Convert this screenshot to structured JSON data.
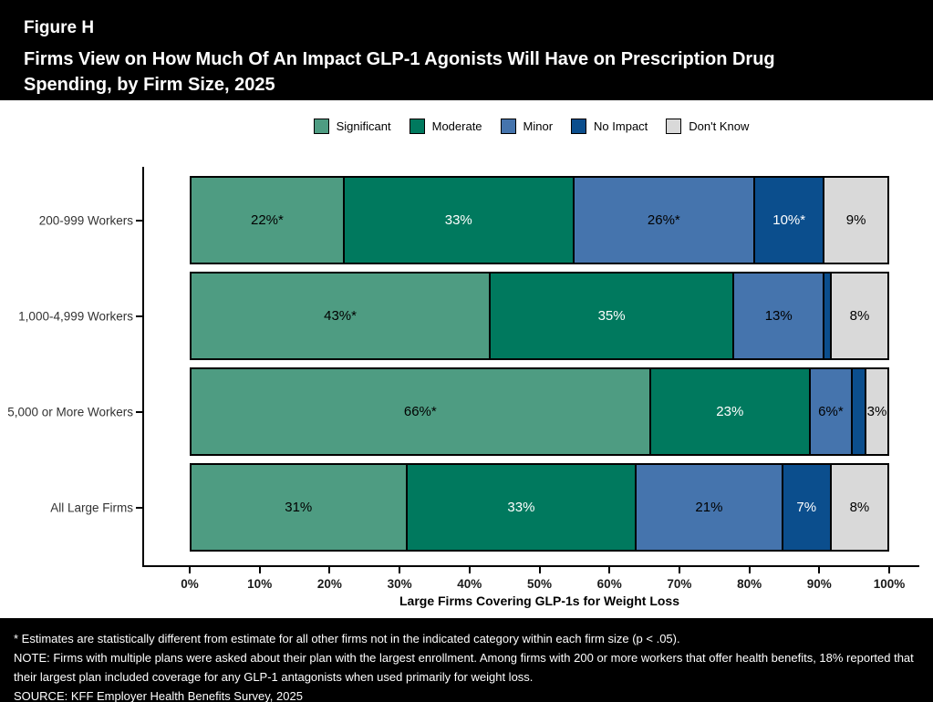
{
  "header": {
    "figure_label": "Figure H",
    "title_line1": "Firms View on How Much Of An Impact GLP-1 Agonists Will Have on Prescription Drug",
    "title_line2": "Spending, by Firm Size, 2025"
  },
  "chart_data": {
    "type": "bar",
    "orientation": "horizontal-stacked",
    "title": "Firms View on How Much Of An Impact GLP-1 Agonists Will Have on Prescription Drug Spending, by Firm Size, 2025",
    "xlabel": "Large Firms Covering GLP-1s for Weight Loss",
    "xlim": [
      0,
      100
    ],
    "x_ticks": [
      "0%",
      "10%",
      "20%",
      "30%",
      "40%",
      "50%",
      "60%",
      "70%",
      "80%",
      "90%",
      "100%"
    ],
    "grid": false,
    "legend_position": "top",
    "categories": [
      "200-999 Workers",
      "1,000-4,999 Workers",
      "5,000 or More Workers",
      "All Large Firms"
    ],
    "series": [
      {
        "name": "Significant",
        "color": "#4E9C82",
        "label_color": "#000000",
        "values": [
          22,
          43,
          66,
          31
        ],
        "labels": [
          "22%*",
          "43%*",
          "66%*",
          "31%"
        ]
      },
      {
        "name": "Moderate",
        "color": "#00795E",
        "label_color": "#FFFFFF",
        "values": [
          33,
          35,
          23,
          33
        ],
        "labels": [
          "33%",
          "35%",
          "23%",
          "33%"
        ]
      },
      {
        "name": "Minor",
        "color": "#4574AD",
        "label_color": "#000000",
        "values": [
          26,
          13,
          6,
          21
        ],
        "labels": [
          "26%*",
          "13%",
          "6%*",
          "21%"
        ]
      },
      {
        "name": "No Impact",
        "color": "#0B4E8D",
        "label_color": "#FFFFFF",
        "values": [
          10,
          1,
          2,
          7
        ],
        "labels": [
          "10%*",
          "",
          "",
          "7%"
        ]
      },
      {
        "name": "Don't Know",
        "color": "#D9D9D9",
        "label_color": "#000000",
        "values": [
          9,
          8,
          3,
          8
        ],
        "labels": [
          "9%",
          "8%",
          "3%",
          "8%"
        ]
      }
    ]
  },
  "footer": {
    "line1": "* Estimates are statistically different from estimate for all other firms not in the indicated category within each firm size (p < .05).",
    "line2": "NOTE: Firms with multiple plans were asked about their plan with the largest enrollment.  Among firms with 200 or more workers that offer health benefits, 18% reported that their largest plan included coverage for any GLP-1 antagonists when used primarily for weight loss.",
    "line3": "SOURCE: KFF Employer Health Benefits Survey, 2025"
  }
}
